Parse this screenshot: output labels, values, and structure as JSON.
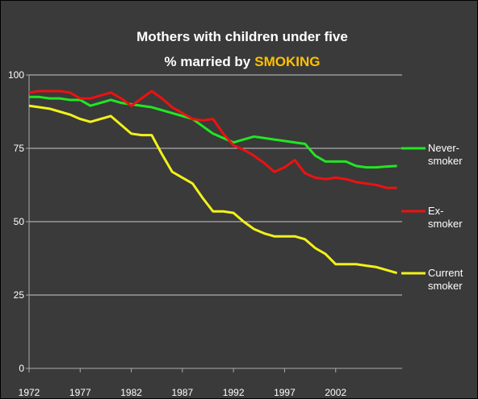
{
  "chart_data": {
    "type": "line",
    "title": "Mothers with children under five",
    "subtitle": "% married by",
    "subtitle_highlight": "SMOKING",
    "x": [
      1972,
      1973,
      1974,
      1975,
      1976,
      1977,
      1978,
      1979,
      1980,
      1981,
      1982,
      1983,
      1984,
      1985,
      1986,
      1987,
      1988,
      1989,
      1990,
      1991,
      1992,
      1993,
      1994,
      1995,
      1996,
      1997,
      1998,
      1999,
      2000,
      2001,
      2002,
      2003,
      2004,
      2005,
      2006,
      2007,
      2008
    ],
    "xlim": [
      1972,
      2008.5
    ],
    "xticks": [
      1972,
      1977,
      1982,
      1987,
      1992,
      1997,
      2002
    ],
    "ylim": [
      0,
      100
    ],
    "yticks": [
      0,
      25,
      50,
      75,
      100
    ],
    "grid": true,
    "legend": "right",
    "series": [
      {
        "name": "Never-smoker",
        "color": "#22e622",
        "values": [
          92.5,
          92.5,
          92,
          92,
          91.5,
          91.5,
          89.5,
          90.5,
          91.5,
          90.5,
          90,
          89.5,
          89,
          88,
          87,
          86,
          85,
          82.5,
          80,
          78.5,
          77,
          78,
          79,
          78.5,
          78,
          77.5,
          77,
          76.5,
          72.5,
          70.5,
          70.5,
          70.5,
          69,
          68.5,
          68.5,
          68.8,
          69
        ]
      },
      {
        "name": "Ex-smoker",
        "color": "#ee1111",
        "values": [
          94,
          94.5,
          94.5,
          94.5,
          94,
          92,
          92,
          93,
          94,
          92,
          89.5,
          92,
          94.5,
          92,
          89,
          87,
          85,
          84.5,
          85,
          80,
          76,
          74.5,
          72.5,
          70,
          67,
          68.5,
          71,
          66.5,
          65,
          64.5,
          65,
          64.5,
          63.5,
          63,
          62.5,
          61.5,
          61.5
        ]
      },
      {
        "name": "Current smoker",
        "color": "#f2f21a",
        "values": [
          89.5,
          89,
          88.5,
          87.5,
          86.5,
          85,
          84,
          85,
          86,
          83,
          80,
          79.5,
          79.5,
          73,
          67,
          65,
          63,
          58,
          53.5,
          53.5,
          53,
          50,
          47.5,
          46,
          45,
          45,
          45,
          44,
          41,
          39,
          35.5,
          35.5,
          35.5,
          35,
          34.5,
          33.5,
          32.5
        ]
      }
    ]
  }
}
